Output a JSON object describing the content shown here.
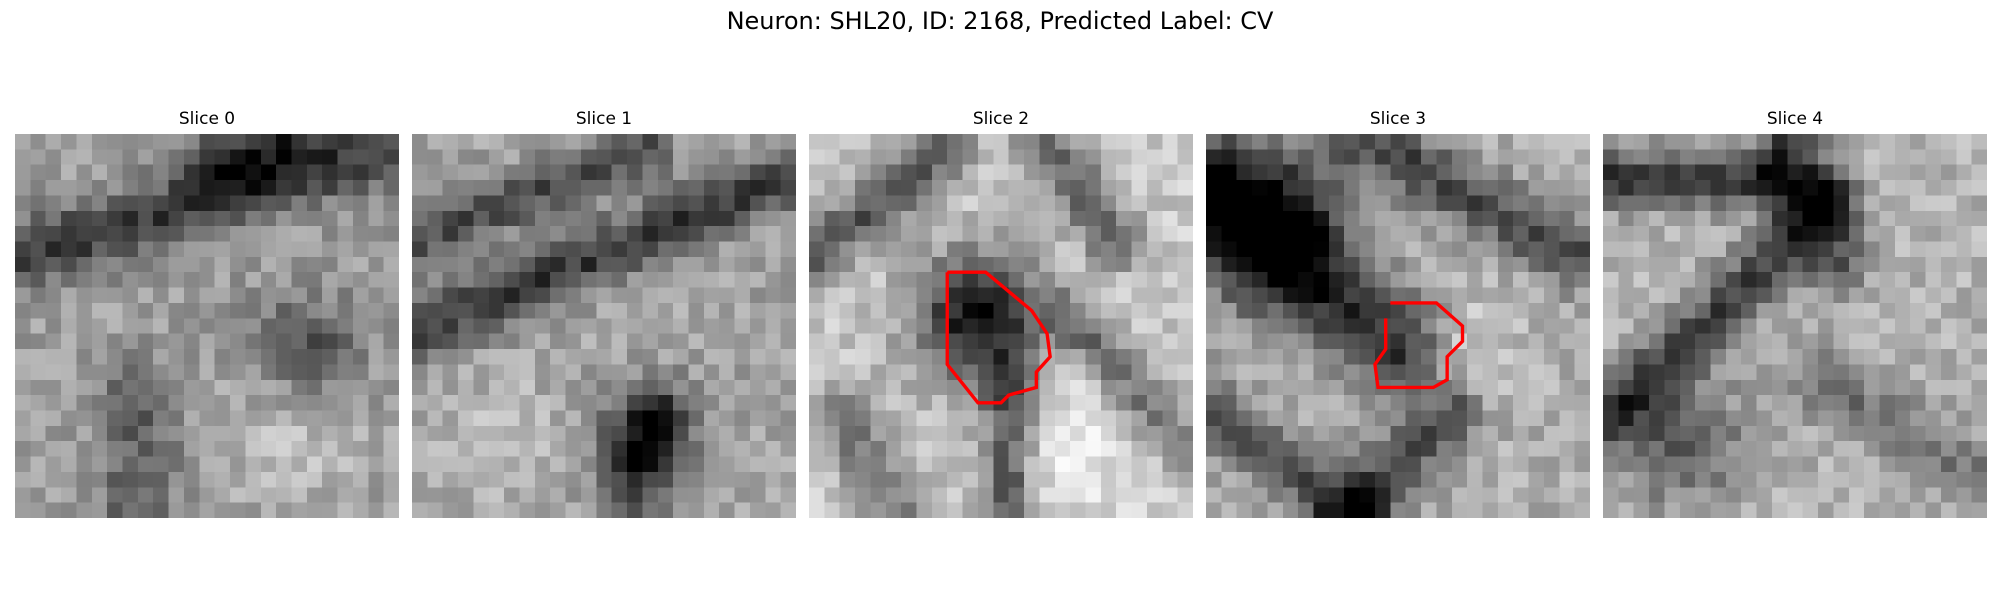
{
  "figure": {
    "title": "Neuron: SHL20, ID: 2168, Predicted Label: CV"
  },
  "panels": [
    {
      "title": "Slice 0"
    },
    {
      "title": "Slice 1"
    },
    {
      "title": "Slice 2"
    },
    {
      "title": "Slice 3"
    },
    {
      "title": "Slice 4"
    }
  ],
  "colors": {
    "background": "#ffffff",
    "contour": "#ff0000",
    "colormap": "gray"
  },
  "image_grid": {
    "rows": 25,
    "cols": 25
  },
  "contour_slices": [
    2,
    3
  ]
}
